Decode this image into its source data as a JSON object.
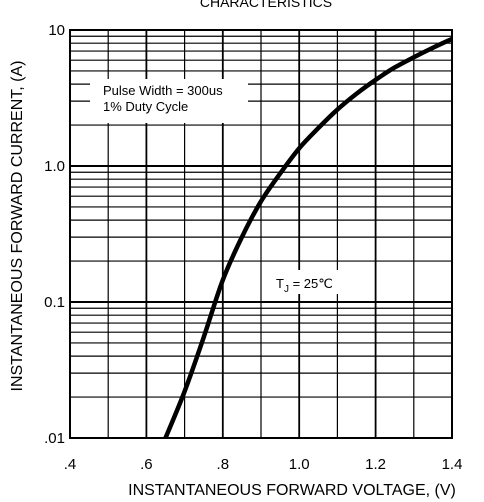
{
  "chart_data": {
    "type": "line",
    "title": "CHARACTERISTICS",
    "xlabel": "INSTANTANEOUS FORWARD VOLTAGE, (V)",
    "ylabel": "INSTANTANEOUS FORWARD CURRENT, (A)",
    "x_scale": "linear",
    "y_scale": "log",
    "xlim": [
      0.4,
      1.4
    ],
    "ylim": [
      0.01,
      10
    ],
    "x_ticks": [
      0.4,
      0.6,
      0.8,
      1.0,
      1.2,
      1.4
    ],
    "x_tick_labels": [
      ".4",
      ".6",
      ".8",
      "1.0",
      "1.2",
      "1.4"
    ],
    "y_ticks": [
      0.01,
      0.1,
      1,
      10
    ],
    "y_tick_labels": [
      ".01",
      "0.1",
      "1.0",
      "10"
    ],
    "grid": true,
    "series": [
      {
        "x": [
          0.65,
          0.7,
          0.75,
          0.8,
          0.85,
          0.9,
          0.95,
          1.0,
          1.05,
          1.1,
          1.15,
          1.2,
          1.25,
          1.3,
          1.35,
          1.4
        ],
        "y": [
          0.01,
          0.022,
          0.055,
          0.145,
          0.3,
          0.55,
          0.88,
          1.35,
          1.9,
          2.6,
          3.4,
          4.3,
          5.3,
          6.3,
          7.4,
          8.6
        ]
      }
    ],
    "annotations": [
      {
        "text": "Pulse Width = 300us"
      },
      {
        "text": "1% Duty Cycle"
      },
      {
        "text": "TJ = 25℃",
        "prefix": "T",
        "sub": "J",
        "suffix": " = 25℃"
      }
    ]
  }
}
